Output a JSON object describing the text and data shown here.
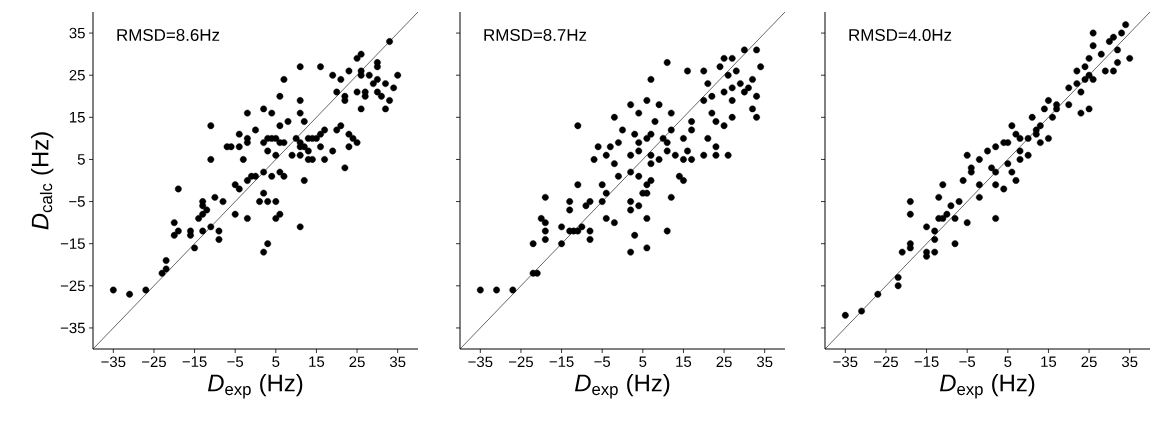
{
  "chart_data": [
    {
      "type": "scatter",
      "xlabel": "*D*$_{exp}$ (Hz)",
      "ylabel": "*D*$_{calc}$ (Hz)",
      "annotations": [
        "RMSD=8.6Hz"
      ],
      "xlim": [
        -40,
        40
      ],
      "ylim": [
        -40,
        40
      ],
      "xticks": [
        {
          "value": -35,
          "label": "−35"
        },
        {
          "value": -25,
          "label": "−25"
        },
        {
          "value": -15,
          "label": "−15"
        },
        {
          "value": -5,
          "label": "−5"
        },
        5,
        15,
        25,
        35
      ],
      "yticks": [
        {
          "value": -35,
          "label": "−35"
        },
        {
          "value": -25,
          "label": "−25"
        },
        {
          "value": -15,
          "label": "−15"
        },
        {
          "value": -5,
          "label": "−5"
        },
        5,
        15,
        25,
        35
      ],
      "series": [
        {
          "color": "#000000",
          "marker": "circle",
          "x": [
            -35,
            -31,
            -27,
            -22,
            -23,
            -22,
            -19,
            -20,
            -19,
            -20,
            -16,
            -16,
            -13,
            -15,
            -13,
            -13,
            -13,
            -14,
            -12,
            -11,
            -10,
            -8,
            -9,
            -9,
            -11,
            -11,
            -5,
            -4,
            -5,
            -2,
            -3,
            -7,
            -6,
            -4,
            -4,
            -2,
            -2,
            0,
            -2,
            2,
            4,
            -2,
            -1,
            0,
            2,
            4,
            6,
            7,
            1,
            2,
            3,
            5,
            5,
            6,
            2,
            3,
            3,
            4,
            2,
            3,
            5,
            6,
            7,
            5,
            6,
            7,
            6,
            8,
            11,
            11,
            12,
            11,
            16,
            10,
            11,
            11,
            9,
            11,
            12,
            13,
            14,
            13,
            15,
            16,
            17,
            16,
            13,
            14,
            17,
            19,
            12,
            11,
            22,
            20,
            21,
            23,
            24,
            25,
            23,
            19,
            21,
            20,
            22,
            22,
            23,
            25,
            26,
            26,
            26,
            28,
            25,
            27,
            27,
            29,
            30,
            30,
            26,
            30,
            30,
            33,
            35,
            32,
            31,
            33,
            32,
            34
          ],
          "values": [
            -26,
            -27,
            -26,
            -19,
            -22,
            -21,
            -2,
            -10,
            -12,
            -13,
            -12,
            -13,
            -12,
            -16,
            -5,
            -6,
            -8,
            -9,
            -7,
            -11,
            -4,
            -5,
            -12,
            -14,
            5,
            13,
            -1,
            -2,
            -8,
            -9,
            5,
            8,
            8,
            8,
            11,
            10,
            9,
            12,
            16,
            17,
            16,
            0,
            1,
            1,
            2,
            1,
            2,
            1,
            -5,
            -3,
            -5,
            -5,
            -9,
            -8,
            -17,
            -15,
            10,
            10,
            9,
            7,
            10,
            9,
            9,
            6,
            20,
            24,
            13,
            14,
            19,
            16,
            14,
            27,
            27,
            10,
            9,
            8,
            6,
            6,
            8,
            7,
            10,
            10,
            10,
            8,
            12,
            11,
            5,
            5,
            5,
            7,
            0,
            -11,
            3,
            12,
            13,
            11,
            10,
            9,
            8,
            25,
            24,
            21,
            20,
            19,
            26,
            29,
            30,
            26,
            25,
            25,
            21,
            20,
            21,
            23,
            21,
            28,
            17,
            27,
            24,
            33,
            25,
            23,
            20,
            19,
            17,
            22
          ]
        },
        {
          "type": "line",
          "color": "#000000",
          "x": [
            -40,
            40
          ],
          "values": [
            -40,
            40
          ]
        }
      ]
    },
    {
      "type": "scatter",
      "xlabel": "*D*$_{exp}$ (Hz)",
      "annotations": [
        "RMSD=8.7Hz"
      ],
      "tick_labels": "x",
      "xlim": [
        -40,
        40
      ],
      "ylim": [
        -40,
        40
      ],
      "xticks": [
        {
          "value": -35,
          "label": "−35"
        },
        {
          "value": -25,
          "label": "−25"
        },
        {
          "value": -15,
          "label": "−15"
        },
        {
          "value": -5,
          "label": "−5"
        },
        5,
        15,
        25,
        35
      ],
      "yticks": [
        -35,
        -25,
        -15,
        -5,
        5,
        15,
        25,
        35
      ],
      "series": [
        {
          "color": "#000000",
          "marker": "circle",
          "x": [
            -35,
            -31,
            -27,
            -22,
            -21,
            -22,
            -19,
            -20,
            -19,
            -19,
            -19,
            -15,
            -15,
            -13,
            -13,
            -13,
            -12,
            -11,
            -10,
            -9,
            -8,
            -8,
            -8,
            -11,
            -11,
            -7,
            -6,
            -5,
            -5,
            -4,
            -4,
            -2,
            -4,
            -3,
            -2,
            -1,
            -2,
            0,
            -1,
            2,
            4,
            2,
            4,
            6,
            7,
            3,
            4,
            6,
            7,
            8,
            2,
            4,
            7,
            7,
            6,
            7,
            2,
            2,
            4,
            3,
            2,
            6,
            5,
            6,
            6,
            9,
            11,
            12,
            12,
            10,
            11,
            11,
            9,
            13,
            15,
            12,
            11,
            14,
            15,
            16,
            15,
            17,
            17,
            16,
            17,
            20,
            20,
            21,
            20,
            22,
            22,
            21,
            23,
            23,
            26,
            23,
            25,
            27,
            24,
            25,
            27,
            26,
            28,
            25,
            27,
            27,
            29,
            30,
            30,
            33,
            34,
            32,
            33,
            32,
            33,
            31
          ],
          "values": [
            -26,
            -26,
            -26,
            -22,
            -22,
            -15,
            -14,
            -9,
            -12,
            -10,
            -4,
            -11,
            -15,
            -5,
            -7,
            -12,
            -12,
            -12,
            -11,
            -6,
            -12,
            -14,
            -5,
            -1,
            13,
            5,
            8,
            -1,
            -5,
            -9,
            -3,
            -10,
            6,
            8,
            4,
            9,
            15,
            12,
            1,
            2,
            1,
            18,
            16,
            19,
            24,
            11,
            9,
            10,
            11,
            14,
            6,
            7,
            6,
            4,
            -1,
            0,
            -5,
            -7,
            -6,
            -13,
            -17,
            -16,
            -3,
            -3,
            -9,
            18,
            28,
            16,
            12,
            10,
            9,
            7,
            5,
            6,
            5,
            -4,
            -12,
            1,
            0,
            26,
            10,
            12,
            14,
            7,
            5,
            6,
            26,
            23,
            19,
            20,
            16,
            10,
            8,
            6,
            6,
            14,
            13,
            15,
            27,
            29,
            29,
            25,
            26,
            21,
            22,
            19,
            23,
            21,
            31,
            31,
            27,
            24,
            20,
            17,
            15,
            22
          ]
        },
        {
          "type": "line",
          "color": "#000000",
          "x": [
            -40,
            40
          ],
          "values": [
            -40,
            40
          ]
        }
      ]
    },
    {
      "type": "scatter",
      "xlabel": "*D*$_{exp}$ (Hz)",
      "annotations": [
        "RMSD=4.0Hz"
      ],
      "tick_labels": "x",
      "xlim": [
        -40,
        40
      ],
      "ylim": [
        -40,
        40
      ],
      "xticks": [
        {
          "value": -35,
          "label": "−35"
        },
        {
          "value": -25,
          "label": "−25"
        },
        {
          "value": -15,
          "label": "−15"
        },
        {
          "value": -5,
          "label": "−5"
        },
        5,
        15,
        25,
        35
      ],
      "yticks": [
        -35,
        -25,
        -15,
        -5,
        5,
        15,
        25,
        35
      ],
      "series": [
        {
          "color": "#000000",
          "marker": "circle",
          "x": [
            -35,
            -31,
            -27,
            -22,
            -22,
            -19,
            -19,
            -21,
            -19,
            -19,
            -15,
            -15,
            -15,
            -13,
            -13,
            -13,
            -12,
            -11,
            -12,
            -11,
            -10,
            -8,
            -8,
            -9,
            -7,
            -5,
            -6,
            -5,
            -4,
            -4,
            -2,
            -2,
            -2,
            0,
            2,
            4,
            5,
            6,
            7,
            8,
            8,
            1,
            2,
            2,
            4,
            5,
            6,
            7,
            2,
            8,
            10,
            10,
            11,
            12,
            12,
            13,
            13,
            15,
            15,
            14,
            16,
            17,
            17,
            20,
            23,
            25,
            20,
            22,
            22,
            24,
            23,
            24,
            25,
            26,
            25,
            26,
            26,
            28,
            30,
            31,
            33,
            34,
            32,
            32,
            31,
            35,
            29
          ],
          "values": [
            -32,
            -31,
            -27,
            -23,
            -25,
            -5,
            -8,
            -17,
            -15,
            -16,
            -11,
            -17,
            -18,
            -17,
            -14,
            -12,
            -4,
            -1,
            -9,
            -9,
            -8,
            -9,
            -15,
            -6,
            -5,
            -10,
            0,
            6,
            2,
            3,
            -4,
            -1,
            5,
            7,
            8,
            9,
            9,
            13,
            11,
            10,
            7,
            3,
            2,
            -1,
            -2,
            4,
            2,
            0,
            -9,
            5,
            6,
            10,
            15,
            12,
            11,
            9,
            13,
            10,
            19,
            17,
            15,
            17,
            18,
            18,
            16,
            17,
            22,
            23,
            26,
            27,
            21,
            24,
            25,
            24,
            29,
            32,
            35,
            30,
            33,
            34,
            35,
            37,
            31,
            28,
            26,
            29,
            26
          ]
        },
        {
          "type": "line",
          "color": "#000000",
          "x": [
            -40,
            40
          ],
          "values": [
            -40,
            40
          ]
        }
      ]
    }
  ]
}
